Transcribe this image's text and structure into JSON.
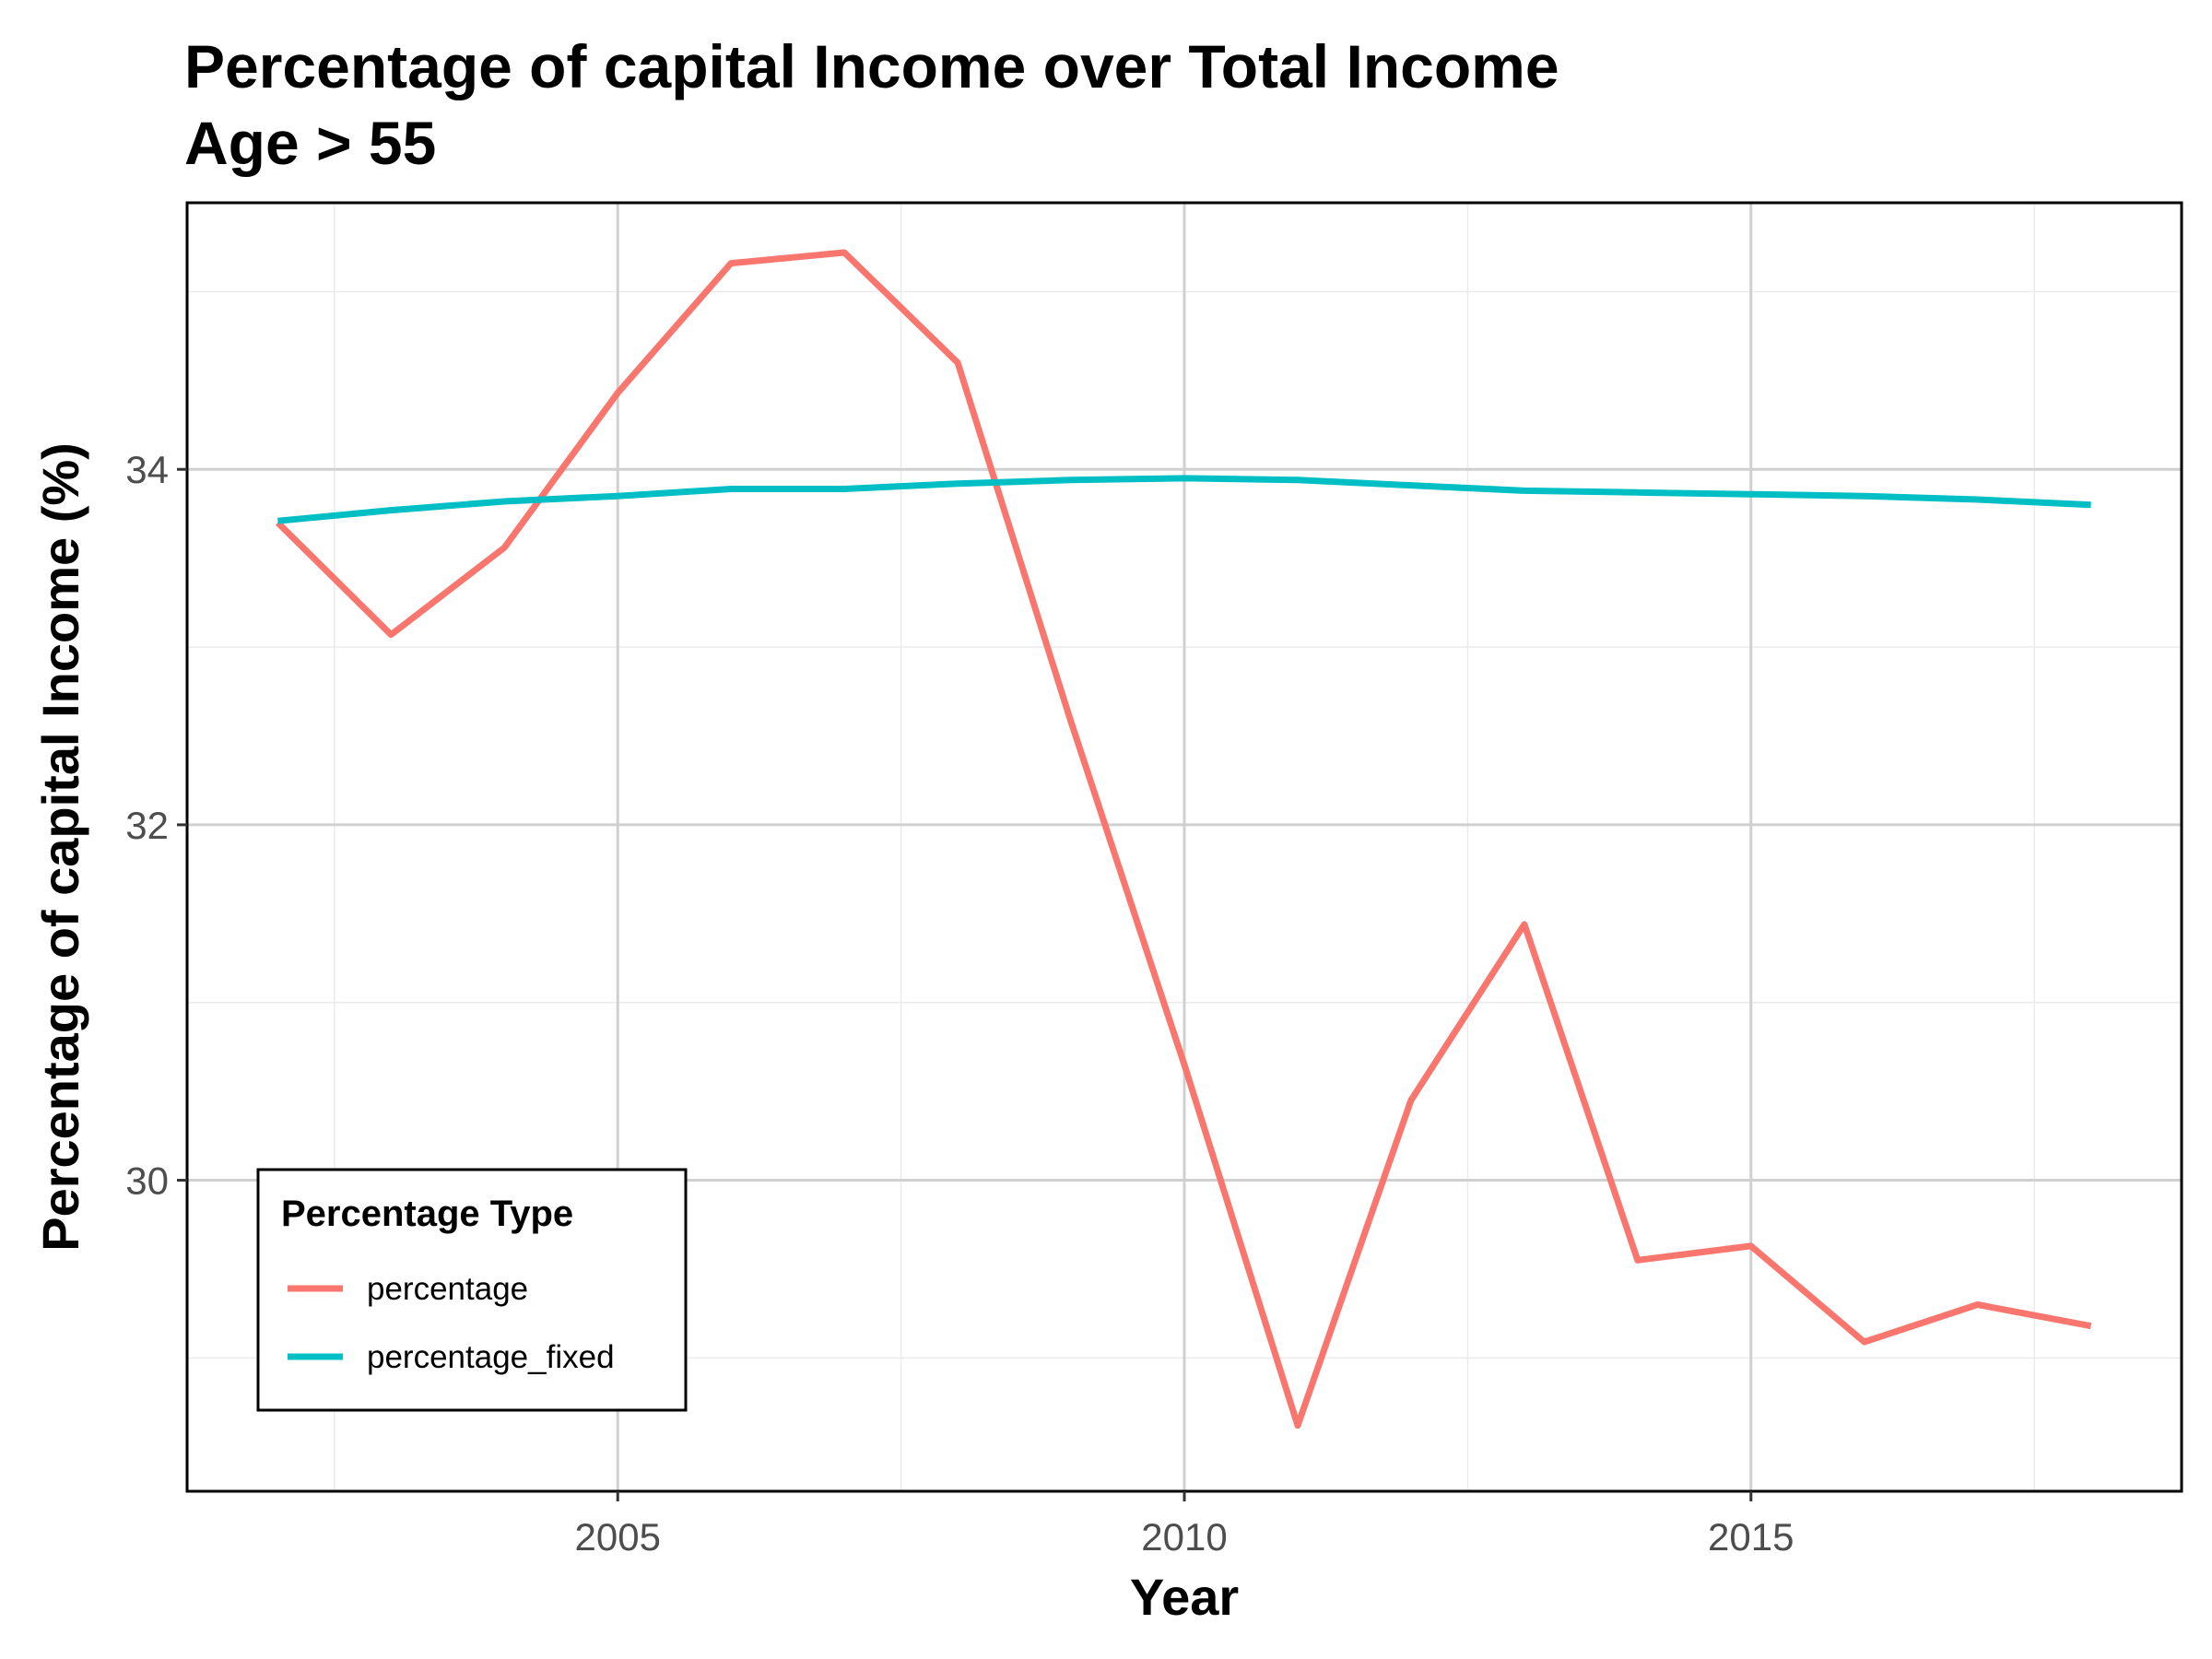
{
  "chart_data": {
    "type": "line",
    "title": "Percentage of capital Income over Total Income",
    "subtitle": "Age > 55",
    "xlabel": "Year",
    "ylabel": "Percentage of capital Income (%)",
    "xlim": [
      2001.2,
      2018.8
    ],
    "ylim": [
      28.25,
      35.5
    ],
    "x_ticks": [
      2005,
      2010,
      2015
    ],
    "y_ticks": [
      30,
      32,
      34
    ],
    "x_minor": [
      2002.5,
      2007.5,
      2012.5,
      2017.5
    ],
    "y_minor": [
      29,
      31,
      33,
      35
    ],
    "grid": true,
    "legend": {
      "title": "Percentage Type",
      "position": "bottom-left"
    },
    "x": [
      2002,
      2003,
      2004,
      2005,
      2006,
      2007,
      2008,
      2009,
      2010,
      2011,
      2012,
      2013,
      2014,
      2015,
      2016,
      2017,
      2018
    ],
    "series": [
      {
        "name": "percentage",
        "color": "#F8766D",
        "values": [
          33.7,
          33.07,
          33.56,
          34.43,
          35.16,
          35.22,
          34.6,
          32.58,
          30.65,
          28.62,
          30.45,
          31.44,
          29.55,
          29.63,
          29.09,
          29.3,
          29.18
        ]
      },
      {
        "name": "percentage_fixed",
        "color": "#00BFC4",
        "values": [
          33.71,
          33.77,
          33.82,
          33.85,
          33.89,
          33.89,
          33.92,
          33.94,
          33.95,
          33.94,
          33.91,
          33.88,
          33.87,
          33.86,
          33.85,
          33.83,
          33.8
        ]
      }
    ]
  }
}
